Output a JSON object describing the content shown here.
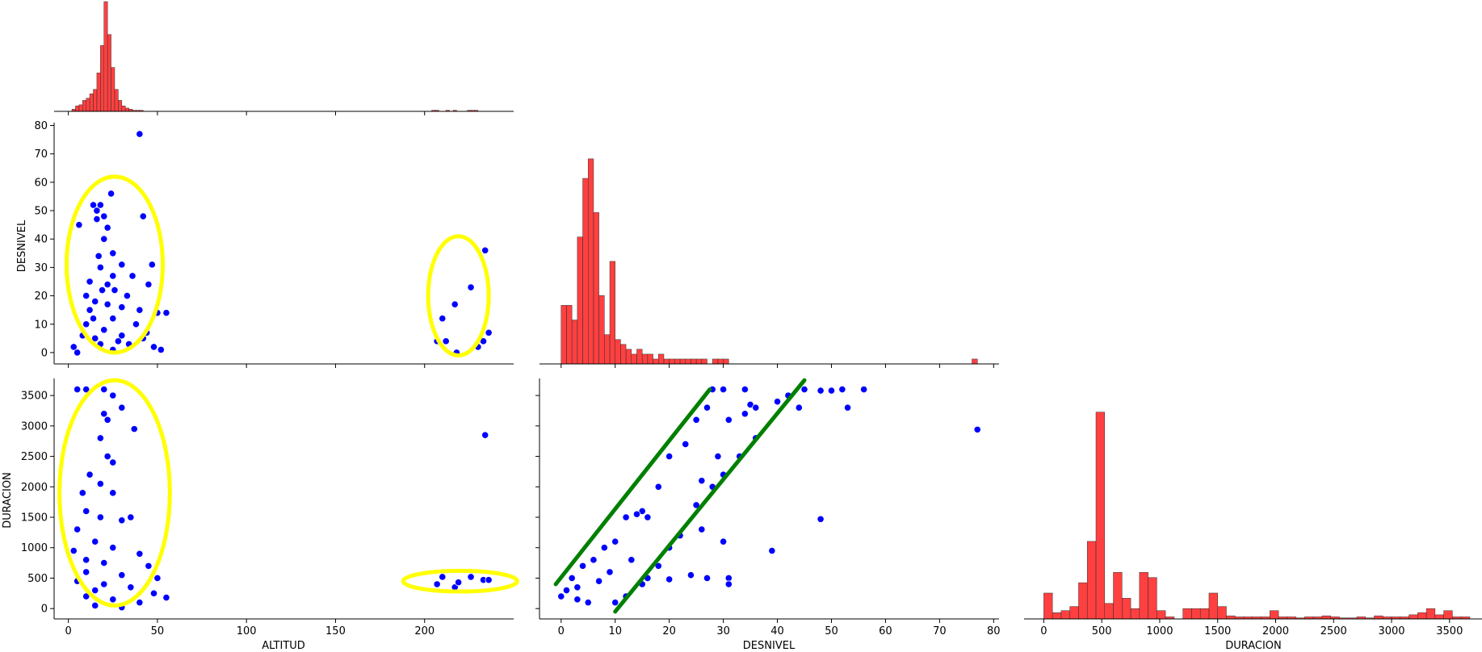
{
  "chart_data": {
    "type": "scatter",
    "title": "",
    "variables": [
      "ALTITUD",
      "DESNIVEL",
      "DURACION"
    ],
    "colors": {
      "scatter": "#0000ff",
      "hist": "#ff0000",
      "highlight_ellipse": "#ffff00",
      "trend_lines": "#008000"
    },
    "axes": {
      "ALTITUD": {
        "label": "ALTITUD",
        "range": [
          -8,
          250
        ],
        "ticks": [
          0,
          50,
          100,
          150,
          200
        ]
      },
      "DESNIVEL": {
        "label": "DESNIVEL",
        "range": [
          -4,
          81
        ],
        "ticks": [
          0,
          10,
          20,
          30,
          40,
          50,
          60,
          70,
          80
        ]
      },
      "DURACION": {
        "label": "DURACION",
        "range": [
          -170,
          3780
        ],
        "ticks": [
          0,
          500,
          1000,
          1500,
          2000,
          2500,
          3000,
          3500
        ]
      }
    },
    "hist_altitud": {
      "description": "distribution of ALTITUD",
      "bins_start": 0,
      "bin_width": 2,
      "counts": [
        0,
        2,
        5,
        6,
        10,
        12,
        16,
        20,
        35,
        60,
        100,
        70,
        40,
        20,
        10,
        5,
        3,
        2,
        1,
        1,
        1,
        0,
        0,
        0,
        0,
        0,
        0,
        0,
        0,
        0,
        0,
        0,
        0,
        0,
        0,
        0,
        0,
        0,
        0,
        0,
        0,
        0,
        0,
        0,
        0,
        0,
        0,
        0,
        0,
        0,
        0,
        0,
        0,
        0,
        0,
        0,
        0,
        0,
        0,
        0,
        0,
        0,
        0,
        0,
        0,
        0,
        0,
        0,
        0,
        0,
        0,
        0,
        0,
        0,
        0,
        0,
        0,
        0,
        0,
        0,
        0,
        0,
        0,
        0,
        0,
        0,
        0,
        0,
        0,
        0,
        0,
        0,
        0,
        0,
        0,
        0,
        0,
        0,
        0,
        0,
        0,
        0,
        1,
        1,
        0,
        0,
        1,
        0,
        1,
        0,
        0,
        0,
        1,
        1,
        1
      ]
    },
    "hist_desnivel": {
      "bins_start": 0,
      "bin_width": 1,
      "counts": [
        12,
        12,
        9,
        26,
        38,
        42,
        31,
        14,
        6,
        21,
        5,
        4,
        3,
        2,
        3,
        2,
        2,
        1,
        2,
        1,
        1,
        1,
        1,
        1,
        1,
        1,
        1,
        0,
        1,
        1,
        1,
        0,
        0,
        0,
        0,
        0,
        0,
        0,
        0,
        0,
        0,
        0,
        0,
        0,
        0,
        0,
        0,
        0,
        0,
        0,
        0,
        0,
        0,
        0,
        0,
        0,
        0,
        0,
        0,
        0,
        0,
        0,
        0,
        0,
        0,
        0,
        0,
        0,
        0,
        0,
        0,
        0,
        0,
        0,
        0,
        0,
        1
      ]
    },
    "hist_duracion": {
      "bins_start": 0,
      "bin_width": 75,
      "counts": [
        25,
        6,
        8,
        12,
        35,
        75,
        200,
        15,
        45,
        20,
        10,
        45,
        40,
        8,
        2,
        0,
        10,
        10,
        10,
        25,
        12,
        3,
        2,
        2,
        2,
        2,
        8,
        2,
        2,
        1,
        2,
        2,
        3,
        2,
        1,
        1,
        2,
        1,
        3,
        2,
        2,
        2,
        4,
        6,
        10,
        4,
        8,
        2,
        2
      ]
    },
    "series": [
      {
        "x_var": "ALTITUD",
        "y_var": "DESNIVEL",
        "points": [
          [
            40,
            77
          ],
          [
            24,
            56
          ],
          [
            18,
            52
          ],
          [
            14,
            52
          ],
          [
            16,
            50
          ],
          [
            20,
            48
          ],
          [
            16,
            47
          ],
          [
            42,
            48
          ],
          [
            22,
            44
          ],
          [
            20,
            40
          ],
          [
            25,
            35
          ],
          [
            30,
            31
          ],
          [
            47,
            31
          ],
          [
            18,
            30
          ],
          [
            25,
            27
          ],
          [
            36,
            27
          ],
          [
            12,
            25
          ],
          [
            45,
            24
          ],
          [
            26,
            22
          ],
          [
            10,
            20
          ],
          [
            33,
            20
          ],
          [
            15,
            18
          ],
          [
            22,
            17
          ],
          [
            30,
            16
          ],
          [
            40,
            15
          ],
          [
            55,
            14
          ],
          [
            50,
            14
          ],
          [
            14,
            12
          ],
          [
            25,
            12
          ],
          [
            10,
            10
          ],
          [
            38,
            10
          ],
          [
            20,
            8
          ],
          [
            30,
            6
          ],
          [
            15,
            5
          ],
          [
            42,
            5
          ],
          [
            18,
            3
          ],
          [
            48,
            2
          ],
          [
            5,
            0
          ],
          [
            25,
            1
          ],
          [
            52,
            1
          ],
          [
            3,
            2
          ],
          [
            8,
            6
          ],
          [
            28,
            4
          ],
          [
            34,
            3
          ],
          [
            12,
            15
          ],
          [
            22,
            24
          ],
          [
            17,
            34
          ],
          [
            6,
            45
          ],
          [
            44,
            7
          ],
          [
            19,
            22
          ],
          [
            234,
            36
          ],
          [
            226,
            23
          ],
          [
            217,
            17
          ],
          [
            210,
            12
          ],
          [
            207,
            4
          ],
          [
            218,
            0
          ],
          [
            236,
            7
          ],
          [
            233,
            4
          ],
          [
            230,
            2
          ],
          [
            212,
            4
          ]
        ]
      },
      {
        "x_var": "ALTITUD",
        "y_var": "DURACION",
        "points": [
          [
            5,
            3600
          ],
          [
            10,
            3600
          ],
          [
            20,
            3600
          ],
          [
            25,
            3500
          ],
          [
            30,
            3300
          ],
          [
            20,
            3200
          ],
          [
            22,
            3100
          ],
          [
            37,
            2950
          ],
          [
            18,
            2800
          ],
          [
            22,
            2500
          ],
          [
            25,
            2400
          ],
          [
            12,
            2200
          ],
          [
            18,
            2050
          ],
          [
            25,
            1900
          ],
          [
            35,
            1500
          ],
          [
            10,
            1600
          ],
          [
            18,
            1500
          ],
          [
            30,
            1450
          ],
          [
            5,
            1300
          ],
          [
            15,
            1100
          ],
          [
            25,
            1000
          ],
          [
            40,
            900
          ],
          [
            10,
            800
          ],
          [
            20,
            750
          ],
          [
            45,
            700
          ],
          [
            10,
            600
          ],
          [
            30,
            550
          ],
          [
            50,
            500
          ],
          [
            5,
            450
          ],
          [
            20,
            400
          ],
          [
            35,
            350
          ],
          [
            15,
            300
          ],
          [
            48,
            250
          ],
          [
            10,
            200
          ],
          [
            25,
            150
          ],
          [
            40,
            100
          ],
          [
            15,
            50
          ],
          [
            30,
            20
          ],
          [
            55,
            180
          ],
          [
            3,
            950
          ],
          [
            8,
            1900
          ],
          [
            234,
            2850
          ],
          [
            207,
            400
          ],
          [
            210,
            520
          ],
          [
            217,
            350
          ],
          [
            226,
            520
          ],
          [
            233,
            470
          ],
          [
            236,
            470
          ],
          [
            219,
            430
          ]
        ]
      },
      {
        "x_var": "DESNIVEL",
        "y_var": "DURACION",
        "points": [
          [
            77,
            2940
          ],
          [
            48,
            1470
          ],
          [
            39,
            950
          ],
          [
            52,
            3600
          ],
          [
            50,
            3580
          ],
          [
            48,
            3580
          ],
          [
            45,
            3600
          ],
          [
            42,
            3500
          ],
          [
            40,
            3400
          ],
          [
            35,
            3350
          ],
          [
            34,
            3600
          ],
          [
            30,
            3600
          ],
          [
            28,
            3600
          ],
          [
            27,
            3300
          ],
          [
            25,
            3100
          ],
          [
            23,
            2700
          ],
          [
            20,
            2500
          ],
          [
            18,
            2000
          ],
          [
            15,
            1600
          ],
          [
            12,
            1500
          ],
          [
            10,
            1100
          ],
          [
            8,
            1000
          ],
          [
            6,
            800
          ],
          [
            4,
            700
          ],
          [
            2,
            500
          ],
          [
            1,
            300
          ],
          [
            0,
            200
          ],
          [
            3,
            150
          ],
          [
            5,
            100
          ],
          [
            10,
            100
          ],
          [
            12,
            200
          ],
          [
            15,
            400
          ],
          [
            18,
            700
          ],
          [
            20,
            1000
          ],
          [
            22,
            1200
          ],
          [
            25,
            1700
          ],
          [
            28,
            2000
          ],
          [
            30,
            2200
          ],
          [
            33,
            2500
          ],
          [
            36,
            2800
          ],
          [
            31,
            500
          ],
          [
            31,
            400
          ],
          [
            27,
            500
          ],
          [
            24,
            550
          ],
          [
            20,
            480
          ],
          [
            16,
            500
          ],
          [
            13,
            800
          ],
          [
            9,
            600
          ],
          [
            7,
            450
          ],
          [
            3,
            350
          ],
          [
            14,
            1550
          ],
          [
            16,
            1500
          ],
          [
            26,
            2100
          ],
          [
            29,
            2500
          ],
          [
            31,
            3100
          ],
          [
            34,
            3200
          ],
          [
            36,
            3300
          ],
          [
            44,
            3300
          ],
          [
            53,
            3300
          ],
          [
            56,
            3600
          ],
          [
            30,
            1100
          ],
          [
            26,
            1300
          ]
        ]
      }
    ],
    "annotations": [
      {
        "type": "ellipse",
        "panel": "ALTITUD-DESNIVEL",
        "center": [
          26,
          31
        ],
        "radii": [
          27,
          31
        ]
      },
      {
        "type": "ellipse",
        "panel": "ALTITUD-DESNIVEL",
        "center": [
          219,
          20
        ],
        "radii": [
          17,
          21
        ]
      },
      {
        "type": "ellipse",
        "panel": "ALTITUD-DURACION",
        "center": [
          26,
          1900
        ],
        "radii": [
          31,
          1850
        ]
      },
      {
        "type": "ellipse",
        "panel": "ALTITUD-DURACION",
        "center": [
          220,
          450
        ],
        "radii": [
          32,
          170
        ]
      },
      {
        "type": "line",
        "panel": "DESNIVEL-DURACION",
        "from": [
          -1,
          400
        ],
        "to": [
          27.5,
          3600
        ]
      },
      {
        "type": "line",
        "panel": "DESNIVEL-DURACION",
        "from": [
          10,
          -50
        ],
        "to": [
          45,
          3750
        ]
      }
    ]
  }
}
